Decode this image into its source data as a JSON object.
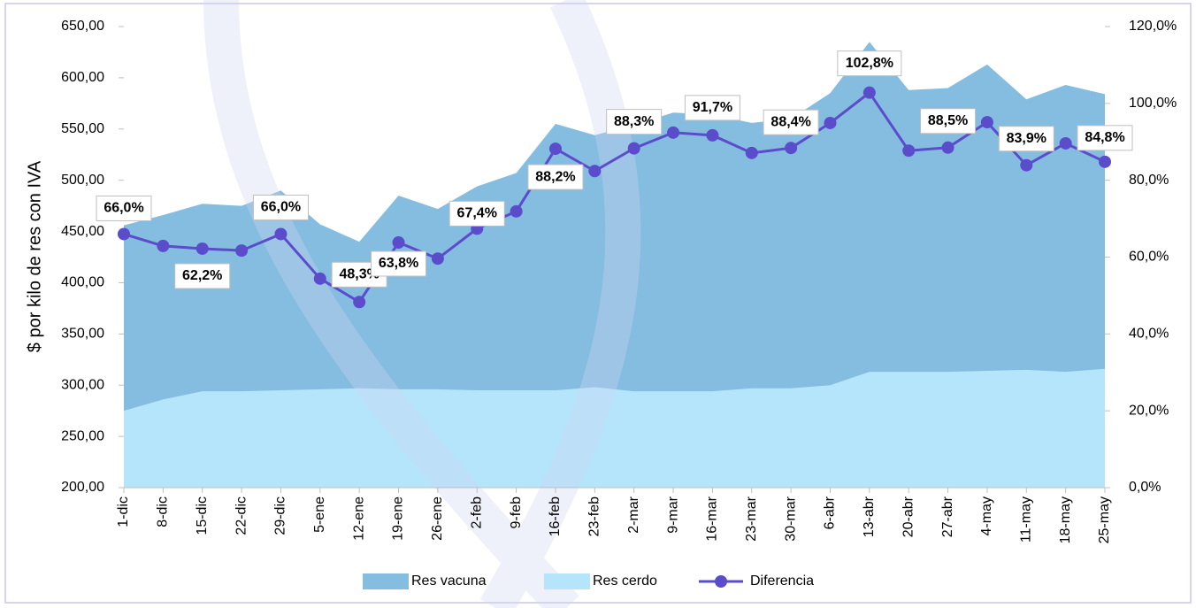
{
  "chart_data": {
    "type": "area-line",
    "y_label": "$ por kilo de res con IVA",
    "categories": [
      "1-dic",
      "8-dic",
      "15-dic",
      "22-dic",
      "29-dic",
      "5-ene",
      "12-ene",
      "19-ene",
      "26-ene",
      "2-feb",
      "9-feb",
      "16-feb",
      "23-feb",
      "2-mar",
      "9-mar",
      "16-mar",
      "23-mar",
      "30-mar",
      "6-abr",
      "13-abr",
      "20-abr",
      "27-abr",
      "4-may",
      "11-may",
      "18-may",
      "25-may"
    ],
    "series": [
      {
        "name": "Res vacuna",
        "kind": "area",
        "color": "#84bde0",
        "values": [
          456,
          466,
          477,
          475,
          490,
          457,
          440,
          485,
          472,
          494,
          507,
          555,
          544,
          554,
          566,
          564,
          556,
          560,
          585,
          635,
          588,
          590,
          613,
          579,
          593,
          584
        ]
      },
      {
        "name": "Res cerdo",
        "kind": "area",
        "color": "#b4e5fb",
        "values": [
          275,
          286,
          294,
          294,
          295,
          296,
          297,
          296,
          296,
          295,
          295,
          295,
          298,
          294,
          294,
          294,
          297,
          297,
          300,
          313,
          313,
          313,
          314,
          315,
          313,
          316
        ]
      },
      {
        "name": "Diferencia",
        "kind": "line",
        "axis": "y2",
        "color": "#5b4ccc",
        "values": [
          66.0,
          62.9,
          62.2,
          61.7,
          66.0,
          54.4,
          48.3,
          63.8,
          59.6,
          67.4,
          71.9,
          88.2,
          82.4,
          88.3,
          92.4,
          91.7,
          87.1,
          88.4,
          94.9,
          102.8,
          87.7,
          88.5,
          95.1,
          83.9,
          89.6,
          84.8
        ],
        "value_labels": [
          "66,0%",
          null,
          "62,2%",
          null,
          "66,0%",
          null,
          "48,3%",
          "63,8%",
          null,
          "67,4%",
          null,
          "88,2%",
          null,
          "88,3%",
          null,
          "91,7%",
          null,
          "88,4%",
          null,
          "102,8%",
          null,
          "88,5%",
          null,
          "83,9%",
          null,
          "84,8%"
        ]
      }
    ],
    "ylim": [
      200,
      650
    ],
    "yticks": [
      {
        "value": 200,
        "label": "200,00"
      },
      {
        "value": 250,
        "label": "250,00"
      },
      {
        "value": 300,
        "label": "300,00"
      },
      {
        "value": 350,
        "label": "350,00"
      },
      {
        "value": 400,
        "label": "400,00"
      },
      {
        "value": 450,
        "label": "450,00"
      },
      {
        "value": 500,
        "label": "500,00"
      },
      {
        "value": 550,
        "label": "550,00"
      },
      {
        "value": 600,
        "label": "600,00"
      },
      {
        "value": 650,
        "label": "650,00"
      }
    ],
    "y2lim": [
      0,
      120
    ],
    "y2ticks": [
      {
        "value": 0,
        "label": "0,0%"
      },
      {
        "value": 20,
        "label": "20,0%"
      },
      {
        "value": 40,
        "label": "40,0%"
      },
      {
        "value": 60,
        "label": "60,0%"
      },
      {
        "value": 80,
        "label": "80,0%"
      },
      {
        "value": 100,
        "label": "100,0%"
      },
      {
        "value": 120,
        "label": "120,0%"
      }
    ],
    "legend": "bottom"
  }
}
